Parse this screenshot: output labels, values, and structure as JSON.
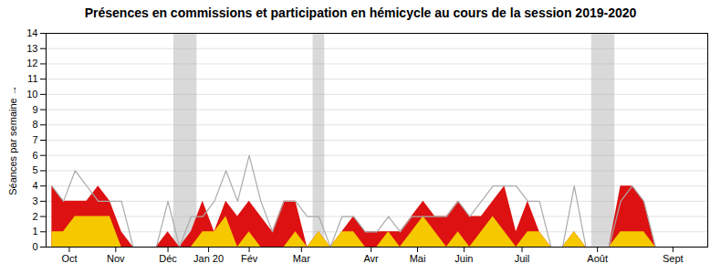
{
  "chart_data": {
    "type": "area",
    "title": "Présences en commissions et participation en hémicycle au cours de la session 2019-2020",
    "ylabel": "Séances par semaine",
    "x": [
      0,
      1,
      2,
      3,
      4,
      5,
      6,
      7,
      8,
      9,
      10,
      11,
      12,
      13,
      14,
      15,
      16,
      17,
      18,
      19,
      20,
      21,
      22,
      23,
      24,
      25,
      26,
      27,
      28,
      29,
      30,
      31,
      32,
      33,
      34,
      35,
      36,
      37,
      38,
      39,
      40,
      41,
      42,
      43,
      44,
      45,
      46,
      47,
      48,
      49,
      50,
      51,
      52,
      53,
      54,
      55,
      56
    ],
    "series": [
      {
        "type": "area",
        "color": "#dd1111",
        "values": [
          4,
          3,
          3,
          3,
          4,
          3,
          1,
          0,
          0,
          0,
          1,
          0,
          1,
          3,
          1,
          3,
          2,
          3,
          2,
          1,
          3,
          3,
          0,
          1,
          0,
          1,
          2,
          1,
          1,
          1,
          1,
          2,
          3,
          2,
          2,
          3,
          2,
          2,
          3,
          4,
          1,
          3,
          1,
          0,
          0,
          1,
          0,
          0,
          0,
          4,
          4,
          3,
          0,
          0,
          0,
          0,
          0
        ]
      },
      {
        "type": "area",
        "color": "#f5c800",
        "values": [
          1,
          1,
          2,
          2,
          2,
          2,
          0,
          0,
          0,
          0,
          0,
          0,
          0,
          1,
          1,
          2,
          0,
          1,
          0,
          0,
          0,
          1,
          0,
          1,
          0,
          1,
          1,
          0,
          0,
          1,
          0,
          1,
          2,
          1,
          0,
          1,
          0,
          1,
          2,
          1,
          0,
          1,
          1,
          0,
          0,
          1,
          0,
          0,
          0,
          1,
          1,
          1,
          0,
          0,
          0,
          0,
          0
        ]
      },
      {
        "type": "line",
        "color": "#aaaaaa",
        "values": [
          4,
          3,
          5,
          4,
          3,
          3,
          3,
          0,
          0,
          0,
          3,
          0,
          2,
          2,
          3,
          5,
          3,
          6,
          3,
          1,
          3,
          3,
          2,
          2,
          0,
          2,
          2,
          1,
          1,
          2,
          1,
          2,
          2,
          2,
          2,
          3,
          2,
          3,
          4,
          4,
          4,
          3,
          3,
          0,
          0,
          4,
          0,
          0,
          0,
          3,
          4,
          3,
          0,
          0,
          0,
          0,
          0
        ]
      }
    ],
    "bands": {
      "ranges": [
        [
          10.5,
          12.5
        ],
        [
          22.5,
          23.5
        ],
        [
          46.5,
          48.5
        ]
      ],
      "color": "#aaaaaa"
    },
    "xlim": [
      -0.5,
      56.5
    ],
    "xticks": [
      {
        "value": 1.5,
        "label": "Oct"
      },
      {
        "value": 5.5,
        "label": "Nov"
      },
      {
        "value": 10.0,
        "label": "Déc"
      },
      {
        "value": 13.5,
        "label": "Jan 20"
      },
      {
        "value": 17.0,
        "label": "Fév"
      },
      {
        "value": 21.5,
        "label": "Mar"
      },
      {
        "value": 27.5,
        "label": "Avr"
      },
      {
        "value": 31.5,
        "label": "Mai"
      },
      {
        "value": 35.5,
        "label": "Juin"
      },
      {
        "value": 40.5,
        "label": "Juil"
      },
      {
        "value": 47.0,
        "label": "Août"
      },
      {
        "value": 53.5,
        "label": "Sept"
      }
    ],
    "ylim": [
      0,
      14
    ],
    "yticks": [
      0,
      1,
      2,
      3,
      4,
      5,
      6,
      7,
      8,
      9,
      10,
      11,
      12,
      13,
      14
    ],
    "stacked": false,
    "grid": true
  }
}
